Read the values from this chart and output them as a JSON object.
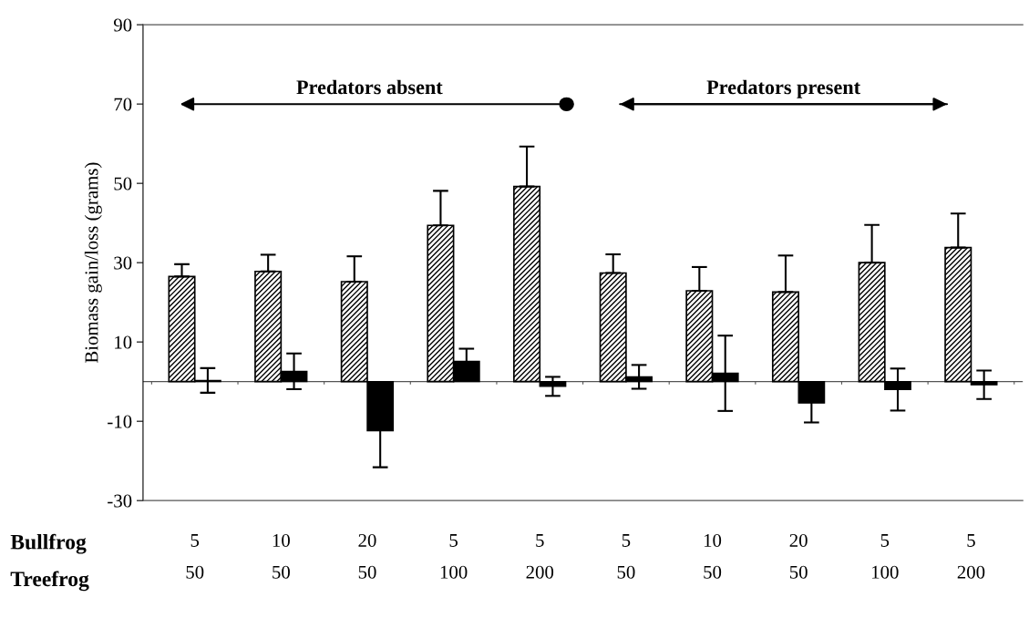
{
  "chart_data": {
    "type": "bar",
    "ylabel": "Biomass gain/loss (grams)",
    "categories": [
      "5\n50",
      "10\n50",
      "20\n50",
      "5\n100",
      "5\n200",
      "5\n50",
      "10\n50",
      "20\n50",
      "5\n100",
      "5\n200"
    ],
    "series": [
      {
        "color": "#000000",
        "values": [
          26.5,
          27.8,
          25.2,
          39.4,
          49.2,
          27.4,
          22.9,
          22.6,
          30.0,
          33.8
        ],
        "errors": [
          [
            26.5,
            29.6
          ],
          [
            27.8,
            32.0
          ],
          [
            25.2,
            31.6
          ],
          [
            39.4,
            48.1
          ],
          [
            49.2,
            59.3
          ],
          [
            27.4,
            32.1
          ],
          [
            22.9,
            28.9
          ],
          [
            22.6,
            31.8
          ],
          [
            30.0,
            39.5
          ],
          [
            33.8,
            42.4
          ]
        ]
      },
      {
        "color": "#000000",
        "values": [
          0.3,
          2.6,
          -12.4,
          5.1,
          -1.2,
          1.2,
          2.1,
          -5.4,
          -2.0,
          -0.8
        ],
        "errors": [
          3.1,
          4.5,
          9.2,
          3.2,
          2.4,
          3.0,
          9.5,
          4.9,
          5.3,
          3.6
        ]
      }
    ],
    "ylim": [
      -30,
      90
    ],
    "yticks": [
      -30,
      -10,
      10,
      30,
      50,
      70,
      90
    ],
    "annotations": [
      "Predators absent",
      "Predators present",
      "Bullfrog",
      "Treefrog"
    ],
    "grid": false
  }
}
